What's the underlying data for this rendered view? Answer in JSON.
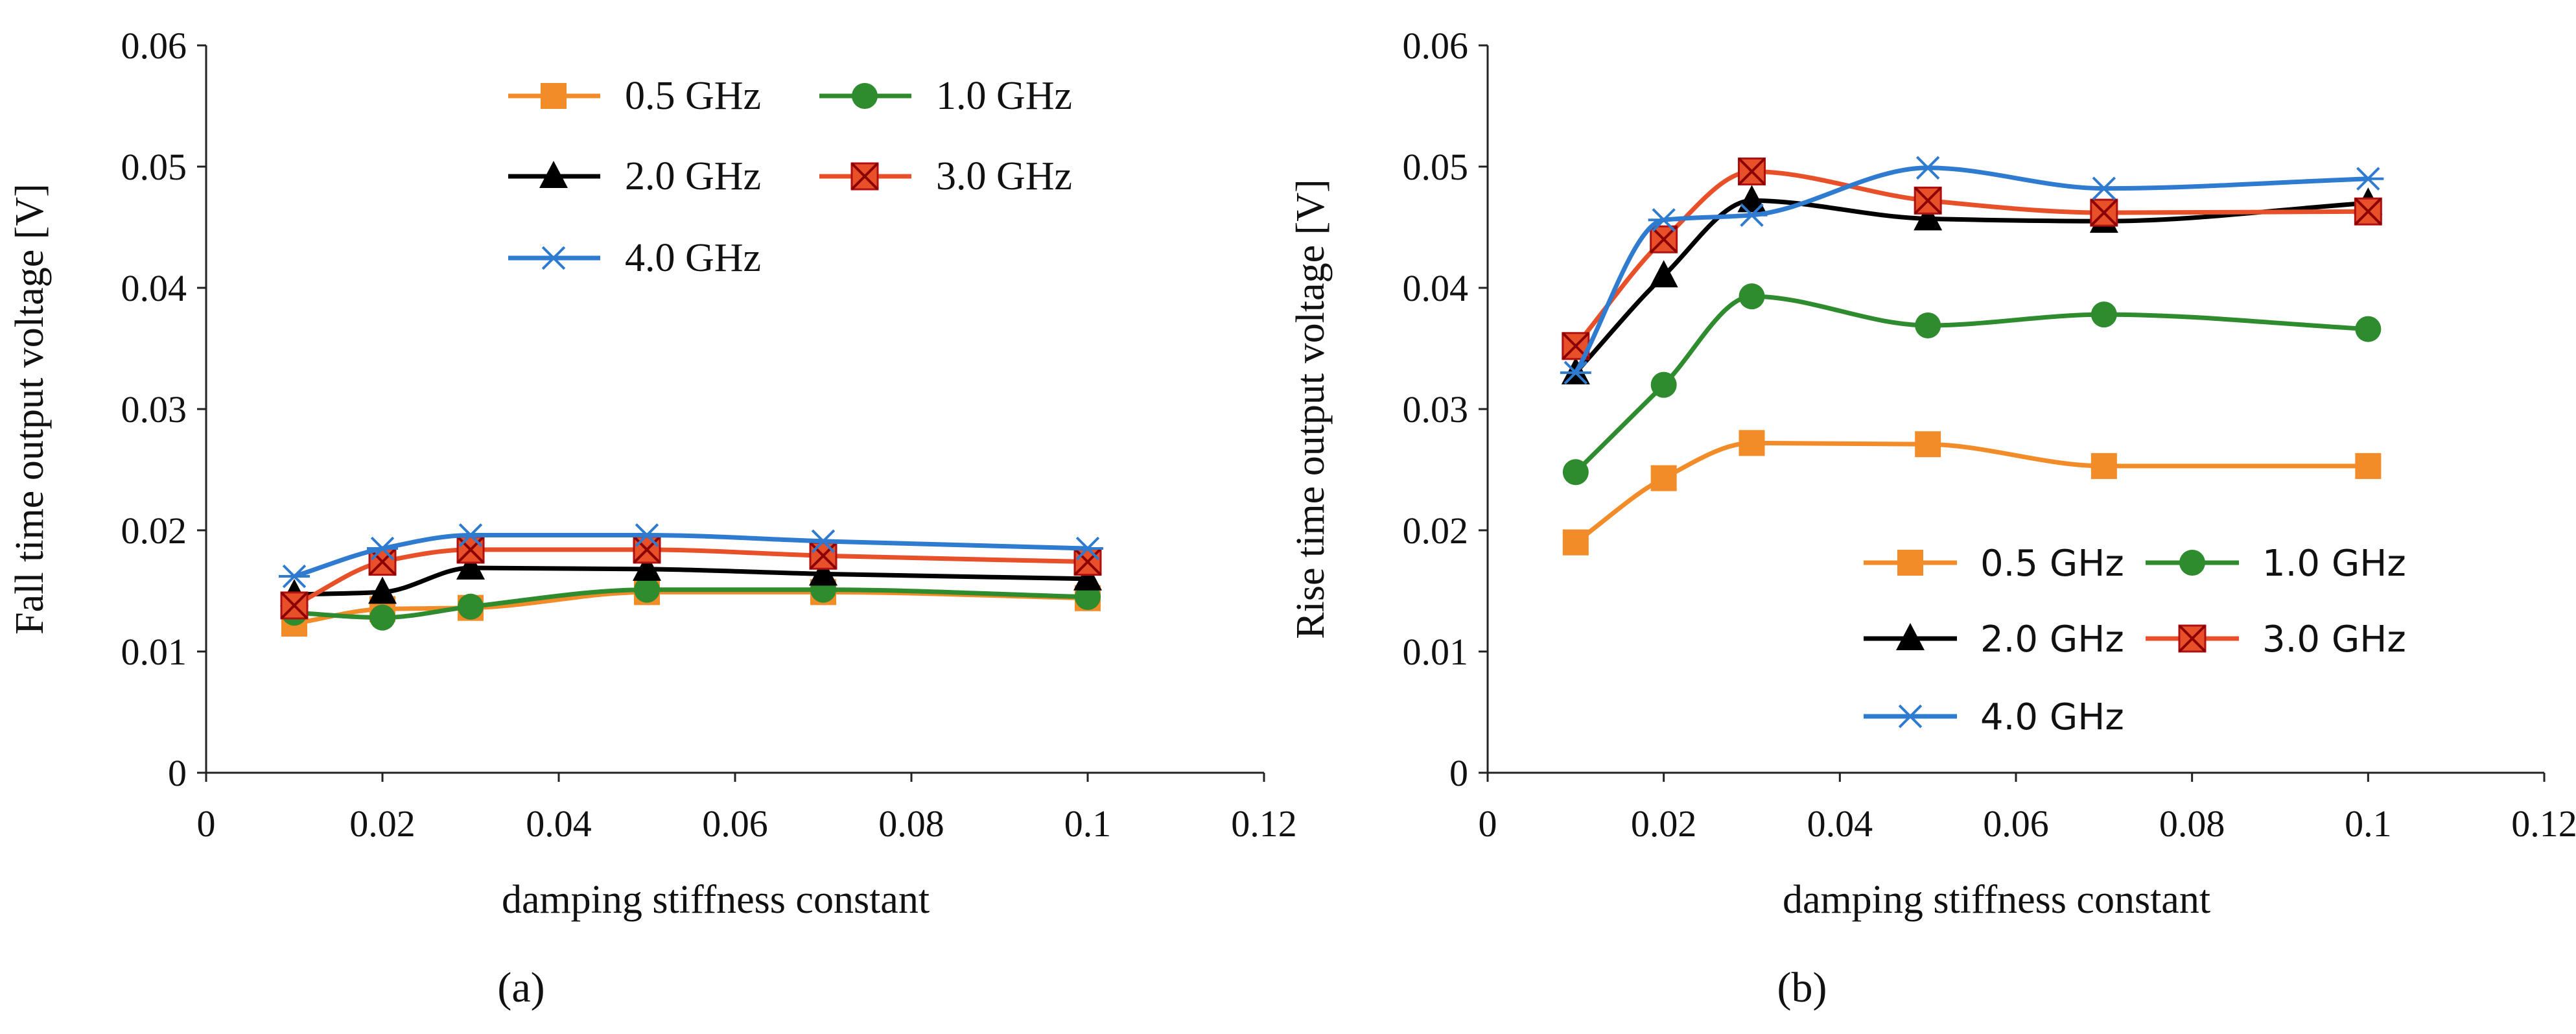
{
  "chart_data": [
    {
      "type": "line",
      "caption": "(a)",
      "xlabel": "damping stiffness constant",
      "ylabel": "Fall time output voltage [V]",
      "xlim": [
        0,
        0.12
      ],
      "ylim": [
        0,
        0.06
      ],
      "x_ticks": [
        0,
        0.02,
        0.04,
        0.06,
        0.08,
        0.1,
        0.12
      ],
      "x_tick_labels": [
        "0",
        "0.02",
        "0.04",
        "0.06",
        "0.08",
        "0.1",
        "0.12"
      ],
      "y_ticks": [
        0,
        0.01,
        0.02,
        0.03,
        0.04,
        0.05,
        0.06
      ],
      "y_tick_labels": [
        "0",
        "0.01",
        "0.02",
        "0.03",
        "0.04",
        "0.05",
        "0.06"
      ],
      "legend_position": "top-right",
      "x": [
        0.01,
        0.02,
        0.03,
        0.05,
        0.07,
        0.1
      ],
      "series": [
        {
          "name": "0.5 GHz",
          "color": "#F28C28",
          "marker": "square",
          "values": [
            0.0123,
            0.0135,
            0.0136,
            0.0149,
            0.0149,
            0.0144
          ]
        },
        {
          "name": "1.0 GHz",
          "color": "#2E8B2E",
          "marker": "circle",
          "values": [
            0.0132,
            0.0128,
            0.0137,
            0.0151,
            0.0151,
            0.0145
          ]
        },
        {
          "name": "2.0 GHz",
          "color": "#000000",
          "marker": "triangle",
          "values": [
            0.0147,
            0.0149,
            0.0169,
            0.0168,
            0.0164,
            0.016
          ]
        },
        {
          "name": "3.0 GHz",
          "color": "#E8502A",
          "marker": "xsquare",
          "values": [
            0.0138,
            0.0174,
            0.0184,
            0.0184,
            0.0179,
            0.0174
          ]
        },
        {
          "name": "4.0 GHz",
          "color": "#2E7BD0",
          "marker": "star",
          "values": [
            0.0162,
            0.0185,
            0.0196,
            0.0196,
            0.0191,
            0.0185
          ]
        }
      ]
    },
    {
      "type": "line",
      "caption": "(b)",
      "xlabel": "damping stiffness constant",
      "ylabel": "Rise time output voltage [V]",
      "xlim": [
        0,
        0.12
      ],
      "ylim": [
        0,
        0.06
      ],
      "x_ticks": [
        0,
        0.02,
        0.04,
        0.06,
        0.08,
        0.1,
        0.12
      ],
      "x_tick_labels": [
        "0",
        "0.02",
        "0.04",
        "0.06",
        "0.08",
        "0.1",
        "0.12"
      ],
      "y_ticks": [
        0,
        0.01,
        0.02,
        0.03,
        0.04,
        0.05,
        0.06
      ],
      "y_tick_labels": [
        "0",
        "0.01",
        "0.02",
        "0.03",
        "0.04",
        "0.05",
        "0.06"
      ],
      "legend_position": "bottom-right",
      "x": [
        0.01,
        0.02,
        0.03,
        0.05,
        0.07,
        0.1
      ],
      "series": [
        {
          "name": "0.5 GHz",
          "color": "#F28C28",
          "marker": "square",
          "values": [
            0.019,
            0.0243,
            0.0272,
            0.0271,
            0.0253,
            0.0253
          ]
        },
        {
          "name": "1.0 GHz",
          "color": "#2E8B2E",
          "marker": "circle",
          "values": [
            0.0248,
            0.032,
            0.0393,
            0.0369,
            0.0378,
            0.0366
          ]
        },
        {
          "name": "2.0 GHz",
          "color": "#000000",
          "marker": "triangle",
          "values": [
            0.033,
            0.041,
            0.0472,
            0.0457,
            0.0455,
            0.047
          ]
        },
        {
          "name": "3.0 GHz",
          "color": "#E8502A",
          "marker": "xsquare",
          "values": [
            0.0352,
            0.044,
            0.0496,
            0.0472,
            0.0462,
            0.0463
          ]
        },
        {
          "name": "4.0 GHz",
          "color": "#2E7BD0",
          "marker": "star",
          "values": [
            0.033,
            0.0456,
            0.046,
            0.0499,
            0.0482,
            0.049
          ]
        }
      ]
    }
  ]
}
